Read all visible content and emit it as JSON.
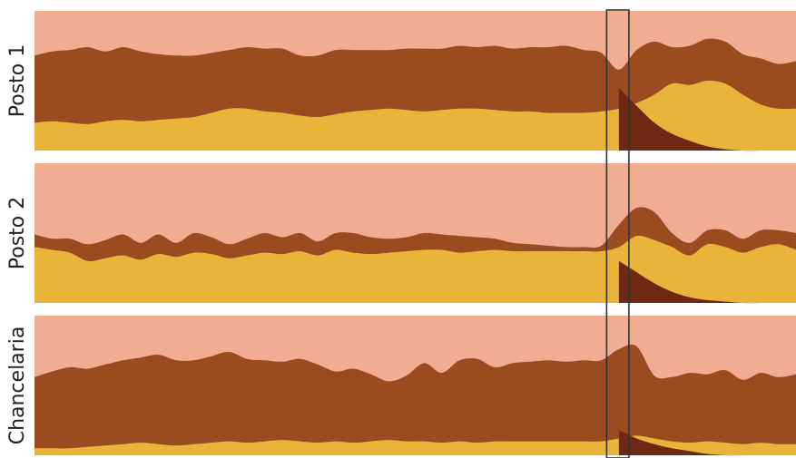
{
  "chart_data": {
    "type": "area",
    "panels": [
      {
        "label": "Posto 1",
        "series": [
          {
            "color": "#e8b53a",
            "values": [
              0.2,
              0.21,
              0.2,
              0.19,
              0.21,
              0.22,
              0.21,
              0.22,
              0.23,
              0.24,
              0.27,
              0.3,
              0.3,
              0.28,
              0.27,
              0.25,
              0.24,
              0.26,
              0.28,
              0.29,
              0.3,
              0.29,
              0.28,
              0.29,
              0.3,
              0.3,
              0.29,
              0.28,
              0.28,
              0.27,
              0.27,
              0.27,
              0.28,
              0.3,
              0.34,
              0.4,
              0.48,
              0.47,
              0.5,
              0.48,
              0.4,
              0.33,
              0.3,
              0.3
            ]
          },
          {
            "color": "#9a4b1f",
            "values": [
              0.48,
              0.5,
              0.52,
              0.55,
              0.5,
              0.52,
              0.5,
              0.47,
              0.45,
              0.44,
              0.43,
              0.42,
              0.44,
              0.45,
              0.46,
              0.43,
              0.44,
              0.46,
              0.44,
              0.43,
              0.42,
              0.44,
              0.45,
              0.44,
              0.45,
              0.44,
              0.46,
              0.45,
              0.46,
              0.47,
              0.48,
              0.45,
              0.42,
              0.28,
              0.38,
              0.38,
              0.26,
              0.28,
              0.3,
              0.3,
              0.29,
              0.33,
              0.32,
              0.34
            ]
          }
        ],
        "peak": [
          0.0,
          0.0,
          0.0,
          0.0,
          0.0,
          0.0,
          0.0,
          0.0,
          0.0,
          0.0,
          0.0,
          0.0,
          0.0,
          0.0,
          0.0,
          0.0,
          0.0,
          0.0,
          0.0,
          0.0,
          0.0,
          0.0,
          0.0,
          0.0,
          0.0,
          0.0,
          0.0,
          0.0,
          0.0,
          0.0,
          0.0,
          0.0,
          0.0,
          0.45,
          0.32,
          0.2,
          0.12,
          0.07,
          0.03,
          0.01,
          0.0,
          0.0,
          0.0,
          0.0
        ]
      },
      {
        "label": "Posto 2",
        "series": [
          {
            "color": "#e8b53a",
            "values": [
              0.4,
              0.38,
              0.36,
              0.3,
              0.32,
              0.34,
              0.31,
              0.35,
              0.33,
              0.36,
              0.35,
              0.32,
              0.34,
              0.36,
              0.35,
              0.37,
              0.34,
              0.38,
              0.36,
              0.35,
              0.36,
              0.37,
              0.38,
              0.38,
              0.36,
              0.37,
              0.38,
              0.37,
              0.37,
              0.37,
              0.37,
              0.37,
              0.37,
              0.4,
              0.48,
              0.45,
              0.4,
              0.34,
              0.42,
              0.4,
              0.36,
              0.4,
              0.42,
              0.38
            ]
          },
          {
            "color": "#9a4b1f",
            "values": [
              0.09,
              0.08,
              0.1,
              0.12,
              0.13,
              0.15,
              0.12,
              0.14,
              0.1,
              0.14,
              0.12,
              0.1,
              0.12,
              0.14,
              0.12,
              0.13,
              0.1,
              0.12,
              0.14,
              0.12,
              0.1,
              0.1,
              0.12,
              0.11,
              0.12,
              0.1,
              0.08,
              0.06,
              0.05,
              0.04,
              0.03,
              0.03,
              0.04,
              0.16,
              0.2,
              0.2,
              0.1,
              0.09,
              0.1,
              0.12,
              0.1,
              0.12,
              0.1,
              0.12
            ]
          }
        ],
        "peak": [
          0.0,
          0.0,
          0.0,
          0.0,
          0.0,
          0.0,
          0.0,
          0.0,
          0.0,
          0.0,
          0.0,
          0.0,
          0.0,
          0.0,
          0.0,
          0.0,
          0.0,
          0.0,
          0.0,
          0.0,
          0.0,
          0.0,
          0.0,
          0.0,
          0.0,
          0.0,
          0.0,
          0.0,
          0.0,
          0.0,
          0.0,
          0.0,
          0.0,
          0.3,
          0.22,
          0.14,
          0.08,
          0.04,
          0.02,
          0.01,
          0.0,
          0.0,
          0.0,
          0.0
        ]
      },
      {
        "label": "Chancelaria",
        "series": [
          {
            "color": "#e8b53a",
            "values": [
              0.05,
              0.05,
              0.05,
              0.06,
              0.07,
              0.08,
              0.09,
              0.08,
              0.07,
              0.08,
              0.09,
              0.1,
              0.09,
              0.1,
              0.11,
              0.1,
              0.09,
              0.1,
              0.09,
              0.1,
              0.11,
              0.1,
              0.1,
              0.09,
              0.1,
              0.09,
              0.1,
              0.1,
              0.1,
              0.1,
              0.1,
              0.1,
              0.1,
              0.12,
              0.14,
              0.12,
              0.1,
              0.09,
              0.1,
              0.09,
              0.08,
              0.09,
              0.08,
              0.08
            ]
          },
          {
            "color": "#9a4b1f",
            "values": [
              0.51,
              0.55,
              0.58,
              0.56,
              0.58,
              0.6,
              0.61,
              0.64,
              0.61,
              0.6,
              0.62,
              0.64,
              0.6,
              0.58,
              0.56,
              0.59,
              0.56,
              0.5,
              0.53,
              0.48,
              0.42,
              0.47,
              0.56,
              0.5,
              0.58,
              0.6,
              0.53,
              0.56,
              0.57,
              0.58,
              0.57,
              0.58,
              0.58,
              0.64,
              0.64,
              0.45,
              0.46,
              0.5,
              0.48,
              0.52,
              0.46,
              0.5,
              0.48,
              0.5
            ]
          }
        ],
        "peak": [
          0.0,
          0.0,
          0.0,
          0.0,
          0.0,
          0.0,
          0.0,
          0.0,
          0.0,
          0.0,
          0.0,
          0.0,
          0.0,
          0.0,
          0.0,
          0.0,
          0.0,
          0.0,
          0.0,
          0.0,
          0.0,
          0.0,
          0.0,
          0.0,
          0.0,
          0.0,
          0.0,
          0.0,
          0.0,
          0.0,
          0.0,
          0.0,
          0.0,
          0.18,
          0.12,
          0.08,
          0.05,
          0.03,
          0.01,
          0.0,
          0.0,
          0.0,
          0.0,
          0.0
        ]
      }
    ],
    "background_color": "#f1ad92",
    "peak_color": "#6e2813",
    "highlight_range": [
      32,
      33
    ],
    "highlight_color": "#333333",
    "x_ticks": false,
    "grid": false
  }
}
